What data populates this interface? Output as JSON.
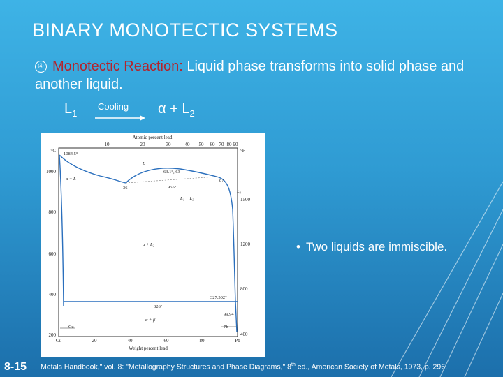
{
  "slide": {
    "title": "BINARY MONOTECTIC SYSTEMS",
    "bullet_icon": "numbered-circle-icon",
    "reaction_term": "Monotectic Reaction:",
    "reaction_body": " Liquid phase transforms into solid phase and another liquid.",
    "equation": {
      "reactant": "L",
      "reactant_sub": "1",
      "arrow_label": "Cooling",
      "product": "α + L",
      "product_sub": "2"
    },
    "side_bullet": "Two liquids are immiscible.",
    "slide_number": "8-15",
    "citation_a": "Metals Handbook,\" vol. 8: \"Metallography Structures and Phase Diagrams,\" 8",
    "citation_sup": "th",
    "citation_b": " ed., American Society of Metals, 1973, p. 296."
  },
  "diagram": {
    "top_axis_title": "Atomic percent lead",
    "top_ticks": [
      "10",
      "20",
      "30",
      "40",
      "50",
      "60",
      "70",
      "80",
      "90"
    ],
    "left_unit": "°C",
    "right_unit": "°F",
    "left_ticks": [
      "1000",
      "800",
      "600",
      "400",
      "200"
    ],
    "right_ticks": [
      "1500",
      "1200",
      "800",
      "400"
    ],
    "bottom_ticks": [
      "Cu",
      "20",
      "40",
      "60",
      "80",
      "Pb"
    ],
    "bottom_axis_title": "Weight percent lead",
    "labels": {
      "cu_melt": "1084.5°",
      "liquid": "L",
      "alpha_plus_l": "α + L",
      "eutectic_pct": "36",
      "monotectic_temp": "955°",
      "monotectic_comp": "63.1°, 63",
      "l1_plus_l2": "L₁ + L₂",
      "right_comp": "87",
      "l2": "L₂",
      "alpha_plus_l2": "α + L₂",
      "temp_327": "327.502°",
      "temp_326": "326°",
      "pct_9994": "99.94",
      "alpha_plus_beta": "α + β",
      "cu_label": "Cu",
      "pb_label": "Pb"
    }
  }
}
